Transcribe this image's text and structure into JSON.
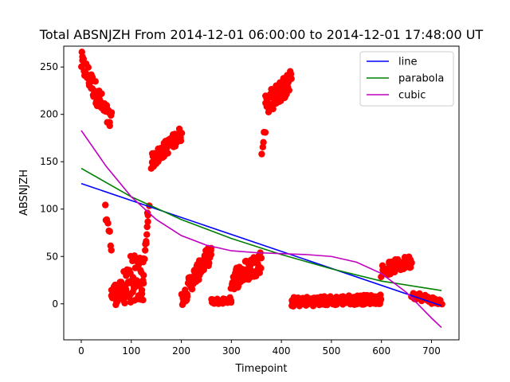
{
  "chart_data": {
    "type": "scatter",
    "title": "Total ABSNJZH From 2014-12-01 06:00:00 to 2014-12-01 17:48:00 UT",
    "xlabel": "Timepoint",
    "ylabel": "ABSNJZH",
    "xlim": [
      -35,
      755
    ],
    "ylim": [
      -38,
      272
    ],
    "xticks": [
      0,
      100,
      200,
      300,
      400,
      500,
      600,
      700
    ],
    "yticks": [
      0,
      50,
      100,
      150,
      200,
      250
    ],
    "grid": false,
    "legend_position": "top-right",
    "points_color": "#ff0000",
    "point_segments": [
      {
        "x0": 0,
        "x1": 60,
        "y0": 255,
        "y1": 190,
        "jitter": 12,
        "n": 60
      },
      {
        "x0": 48,
        "x1": 60,
        "y0": 100,
        "y1": 60,
        "jitter": 6,
        "n": 8
      },
      {
        "x0": 60,
        "x1": 125,
        "y0": 10,
        "y1": 15,
        "jitter": 12,
        "n": 70
      },
      {
        "x0": 85,
        "x1": 125,
        "y0": 30,
        "y1": 45,
        "jitter": 15,
        "n": 20
      },
      {
        "x0": 125,
        "x1": 135,
        "y0": 40,
        "y1": 105,
        "jitter": 8,
        "n": 12
      },
      {
        "x0": 140,
        "x1": 200,
        "y0": 150,
        "y1": 180,
        "jitter": 8,
        "n": 70
      },
      {
        "x0": 200,
        "x1": 215,
        "y0": 5,
        "y1": 15,
        "jitter": 8,
        "n": 15
      },
      {
        "x0": 215,
        "x1": 260,
        "y0": 20,
        "y1": 55,
        "jitter": 10,
        "n": 50
      },
      {
        "x0": 260,
        "x1": 300,
        "y0": 2,
        "y1": 4,
        "jitter": 3,
        "n": 30
      },
      {
        "x0": 300,
        "x1": 360,
        "y0": 25,
        "y1": 45,
        "jitter": 12,
        "n": 70
      },
      {
        "x0": 360,
        "x1": 368,
        "y0": 160,
        "y1": 190,
        "jitter": 10,
        "n": 5
      },
      {
        "x0": 368,
        "x1": 420,
        "y0": 210,
        "y1": 235,
        "jitter": 12,
        "n": 60
      },
      {
        "x0": 420,
        "x1": 600,
        "y0": 2,
        "y1": 5,
        "jitter": 5,
        "n": 160
      },
      {
        "x0": 600,
        "x1": 660,
        "y0": 35,
        "y1": 45,
        "jitter": 7,
        "n": 50
      },
      {
        "x0": 660,
        "x1": 720,
        "y0": 10,
        "y1": 1,
        "jitter": 4,
        "n": 40
      }
    ],
    "series": [
      {
        "name": "line",
        "color": "#0000ff",
        "x": [
          0,
          720
        ],
        "y": [
          127,
          -2
        ]
      },
      {
        "name": "parabola",
        "color": "#008000",
        "x": [
          0,
          100,
          200,
          300,
          400,
          500,
          600,
          720
        ],
        "y": [
          143,
          113,
          89,
          69,
          52,
          37,
          24,
          14
        ]
      },
      {
        "name": "cubic",
        "color": "#bf00bf",
        "x": [
          0,
          50,
          100,
          150,
          200,
          250,
          300,
          350,
          400,
          450,
          500,
          550,
          600,
          650,
          700,
          720
        ],
        "y": [
          183,
          145,
          113,
          89,
          72,
          62,
          56,
          54,
          53,
          52,
          50,
          44,
          32,
          12,
          -15,
          -25
        ]
      }
    ]
  }
}
